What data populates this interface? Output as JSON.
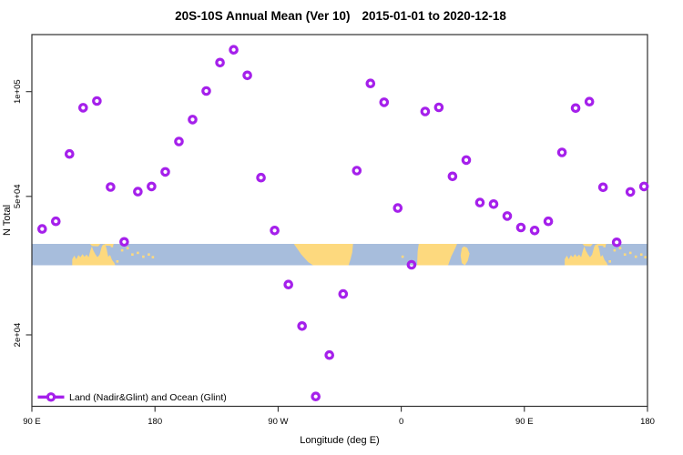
{
  "title": {
    "left": "20S-10S Annual Mean (Ver 10)",
    "right": "2015-01-01 to 2020-12-18"
  },
  "axes": {
    "x": {
      "label": "Longitude (deg E)",
      "ticks": [
        {
          "lon": 90,
          "label": "90 E"
        },
        {
          "lon": 180,
          "label": "180"
        },
        {
          "lon": 270,
          "label": "90 W"
        },
        {
          "lon": 360,
          "label": "0"
        },
        {
          "lon": 450,
          "label": "90 E"
        },
        {
          "lon": 540,
          "label": "180"
        }
      ]
    },
    "y": {
      "label": "N Total",
      "scale": "log",
      "ticks": [
        {
          "value": 100000,
          "label": "1e+05"
        },
        {
          "value": 50000,
          "label": "5e+04"
        },
        {
          "value": 20000,
          "label": "2e+04"
        }
      ]
    }
  },
  "legend": {
    "label": "Land (Nadir&Glint) and Ocean (Glint)"
  },
  "colors": {
    "marker": "#A520EB",
    "ocean": "#A7BDDC",
    "land": "#FDD97E",
    "axis": "#303030"
  },
  "chart_data": {
    "type": "scatter",
    "title": "20S-10S Annual Mean (Ver 10)   2015-01-01 to 2020-12-18",
    "xlabel": "Longitude (deg E)",
    "ylabel": "N Total",
    "x_axis": {
      "min": 90,
      "max": 540,
      "tick_lons": [
        90,
        180,
        270,
        360,
        450,
        540
      ],
      "tick_labels": [
        "90 E",
        "180",
        "90 W",
        "0",
        "90 E",
        "180"
      ]
    },
    "y_axis": {
      "scale": "log",
      "ylim": [
        12500,
        146000
      ],
      "tick_values": [
        20000,
        50000,
        100000
      ],
      "tick_labels": [
        "2e+04",
        "5e+04",
        "1e+05"
      ]
    },
    "grid": false,
    "legend_position": "bottom-left",
    "series": [
      {
        "name": "Land (Nadir&Glint) and Ocean (Glint)",
        "marker": "open-circle",
        "columns": [
          "longitude_deg_e",
          "n_total"
        ],
        "points": [
          [
            97.5,
            40300
          ],
          [
            107.5,
            42400
          ],
          [
            117.5,
            66200
          ],
          [
            127.5,
            89900
          ],
          [
            137.5,
            94000
          ],
          [
            147.5,
            53200
          ],
          [
            157.5,
            37000
          ],
          [
            167.5,
            51600
          ],
          [
            177.5,
            53400
          ],
          [
            187.5,
            58800
          ],
          [
            197.5,
            71900
          ],
          [
            207.5,
            83100
          ],
          [
            217.5,
            100400
          ],
          [
            227.5,
            121200
          ],
          [
            237.5,
            131900
          ],
          [
            247.5,
            111400
          ],
          [
            257.5,
            56600
          ],
          [
            267.5,
            39900
          ],
          [
            277.5,
            27900
          ],
          [
            287.5,
            21200
          ],
          [
            297.5,
            13300
          ],
          [
            307.5,
            17500
          ],
          [
            317.5,
            26200
          ],
          [
            327.5,
            59300
          ],
          [
            337.5,
            105600
          ],
          [
            347.5,
            93200
          ],
          [
            357.5,
            46300
          ],
          [
            367.5,
            31800
          ],
          [
            377.5,
            87700
          ],
          [
            387.5,
            90100
          ],
          [
            397.5,
            57100
          ],
          [
            407.5,
            63600
          ],
          [
            417.5,
            48000
          ],
          [
            427.5,
            47500
          ],
          [
            437.5,
            43900
          ],
          [
            447.5,
            40700
          ],
          [
            457.5,
            39900
          ],
          [
            467.5,
            42400
          ],
          [
            477.5,
            66900
          ],
          [
            487.5,
            89700
          ],
          [
            497.5,
            93600
          ],
          [
            507.5,
            53100
          ],
          [
            517.5,
            36900
          ],
          [
            527.5,
            51500
          ],
          [
            537.5,
            53400
          ]
        ]
      }
    ],
    "map_strip": {
      "description": "20S-10S latitude world-map band (ocean blue, land tan)",
      "repeat_offsets": [
        0,
        360
      ],
      "repeated_polygons": {
        "australia": [
          [
            119.5,
            1
          ],
          [
            119.5,
            0.72
          ],
          [
            121,
            0.55
          ],
          [
            122.5,
            0.72
          ],
          [
            124,
            0.52
          ],
          [
            125.5,
            0.62
          ],
          [
            127,
            0.48
          ],
          [
            128.5,
            0.6
          ],
          [
            130,
            0.5
          ],
          [
            131.5,
            0.62
          ],
          [
            132.8,
            0.3
          ],
          [
            133.8,
            0.12
          ],
          [
            135,
            0.32
          ],
          [
            136.5,
            0.5
          ],
          [
            138,
            0.62
          ],
          [
            139.5,
            0.5
          ],
          [
            141,
            0.15
          ],
          [
            142,
            0.03
          ],
          [
            143.8,
            0.03
          ],
          [
            144.8,
            0.28
          ],
          [
            145.8,
            0.6
          ],
          [
            147.2,
            0.52
          ],
          [
            148.6,
            0.75
          ],
          [
            150.2,
            0.88
          ],
          [
            151,
            1
          ]
        ],
        "new_guinea_a": [
          [
            132.5,
            0
          ],
          [
            140,
            0
          ],
          [
            138.5,
            0.12
          ],
          [
            134,
            0.1
          ]
        ],
        "new_guinea_b": [
          [
            143,
            0
          ],
          [
            150,
            0
          ],
          [
            149,
            0.1
          ],
          [
            144,
            0.08
          ]
        ]
      },
      "polygons": {
        "south_america": [
          [
            281.5,
            0
          ],
          [
            283.5,
            0.18
          ],
          [
            287,
            0.5
          ],
          [
            292,
            0.85
          ],
          [
            295.5,
            1
          ],
          [
            321.5,
            1
          ],
          [
            322.8,
            0.75
          ],
          [
            324.2,
            0.4
          ],
          [
            324.8,
            0
          ]
        ],
        "africa": [
          [
            372.8,
            0
          ],
          [
            372,
            0.35
          ],
          [
            371.6,
            1
          ],
          [
            394.3,
            1
          ],
          [
            396.5,
            0.6
          ],
          [
            399.5,
            0.2
          ],
          [
            400.8,
            0
          ]
        ],
        "madagascar": [
          [
            404.3,
            0.2
          ],
          [
            403.4,
            0.55
          ],
          [
            404.3,
            0.9
          ],
          [
            406.5,
            1
          ],
          [
            408.6,
            0.8
          ],
          [
            409.9,
            0.45
          ],
          [
            408.2,
            0.18
          ],
          [
            405.8,
            0.12
          ]
        ]
      },
      "repeated_islands": [
        [
          148.5,
          0.1
        ],
        [
          152.5,
          0.82
        ],
        [
          156,
          0.3
        ],
        [
          160,
          0.2
        ],
        [
          163.5,
          0.5
        ],
        [
          167.5,
          0.42
        ],
        [
          171.5,
          0.6
        ],
        [
          175.5,
          0.5
        ],
        [
          178.5,
          0.62
        ]
      ],
      "islands": [
        [
          361,
          0.6
        ]
      ]
    }
  }
}
